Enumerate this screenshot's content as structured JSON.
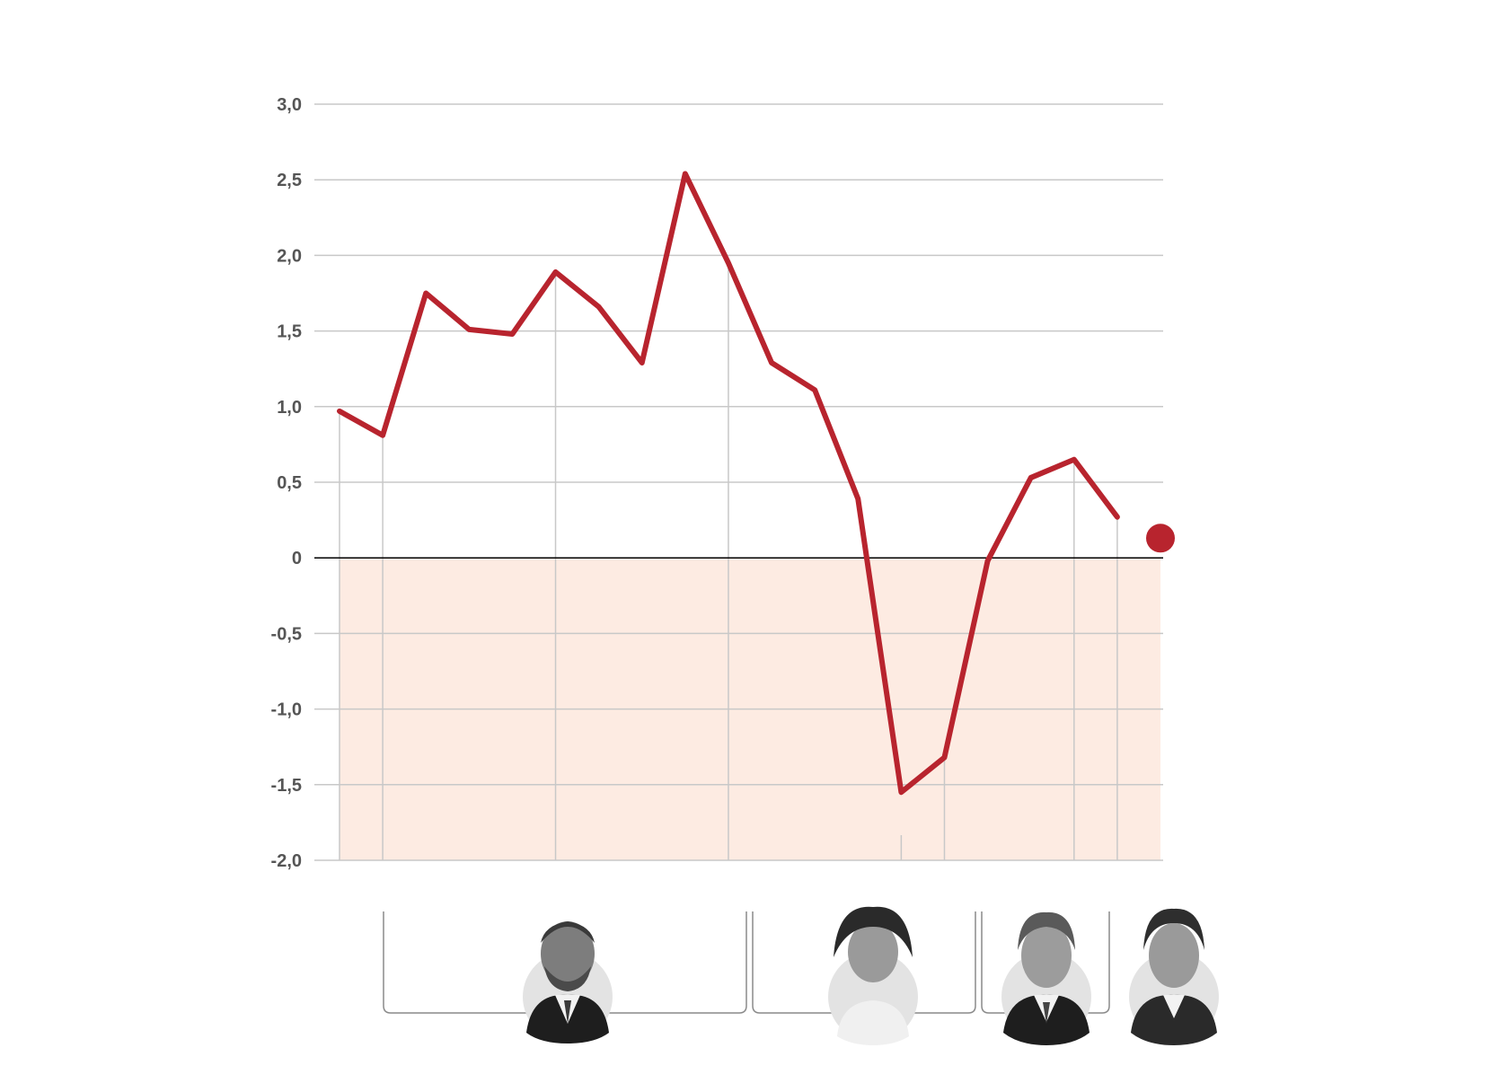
{
  "chart_data": {
    "type": "line",
    "title": "",
    "xlabel": "",
    "ylabel": "",
    "ylim": [
      -2.0,
      3.0
    ],
    "yticks": [
      3.0,
      2.5,
      2.0,
      1.5,
      1.0,
      0.5,
      0,
      -0.5,
      -1.0,
      -1.5,
      -2.0
    ],
    "ytick_labels": [
      "3,0",
      "2,5",
      "2,0",
      "1,5",
      "1,0",
      "0,5",
      "0",
      "-0,5",
      "-1,0",
      "-1,5",
      "-2,0"
    ],
    "grid": true,
    "legend": "none",
    "negative_region_shaded": true,
    "series": [
      {
        "color": "#b8242e",
        "values": [
          0.97,
          0.81,
          1.75,
          1.51,
          1.48,
          1.89,
          1.66,
          1.29,
          2.54,
          1.95,
          1.29,
          1.11,
          0.39,
          -1.55,
          -1.32,
          -0.02,
          0.53,
          0.65,
          0.27
        ],
        "last_point": 0.13
      }
    ],
    "vertical_markers": [
      0,
      1,
      5,
      9,
      13,
      14,
      17,
      18
    ],
    "presidents": [
      {
        "id": "president-1",
        "photo": "portrait-1-icon"
      },
      {
        "id": "president-2",
        "photo": "portrait-2-icon"
      },
      {
        "id": "president-3",
        "photo": "portrait-3-icon"
      },
      {
        "id": "president-4",
        "photo": "portrait-4-icon"
      }
    ],
    "colors": {
      "line": "#b8242e",
      "negative_fill": "#fdebe2",
      "grid": "#c8c8c8",
      "zero_line": "#000000",
      "tick_label": "#555555"
    }
  }
}
